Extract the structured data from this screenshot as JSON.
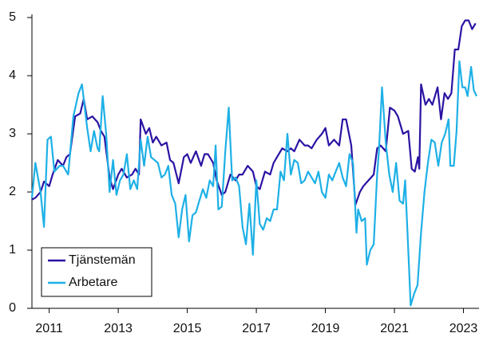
{
  "chart_data": {
    "type": "line",
    "xlim": [
      2010.5,
      2023.45
    ],
    "xticks": [
      2011,
      2013,
      2015,
      2017,
      2019,
      2021,
      2023
    ],
    "ylim": [
      0,
      5
    ],
    "yticks": [
      0,
      1,
      2,
      3,
      4,
      5
    ],
    "grid": false,
    "legend": "lower left",
    "series": [
      {
        "name": "Tjänstemän",
        "color": "#2b13a3",
        "x": [
          2010.5,
          2010.6,
          2010.75,
          2010.85,
          2011.0,
          2011.1,
          2011.25,
          2011.4,
          2011.5,
          2011.6,
          2011.75,
          2011.9,
          2012.0,
          2012.1,
          2012.25,
          2012.4,
          2012.5,
          2012.6,
          2012.75,
          2012.85,
          2013.0,
          2013.1,
          2013.25,
          2013.4,
          2013.5,
          2013.6,
          2013.65,
          2013.8,
          2013.9,
          2014.0,
          2014.1,
          2014.25,
          2014.4,
          2014.5,
          2014.6,
          2014.75,
          2014.9,
          2015.0,
          2015.1,
          2015.25,
          2015.4,
          2015.5,
          2015.6,
          2015.75,
          2015.85,
          2016.0,
          2016.1,
          2016.25,
          2016.4,
          2016.5,
          2016.6,
          2016.75,
          2016.9,
          2017.0,
          2017.1,
          2017.25,
          2017.4,
          2017.5,
          2017.6,
          2017.75,
          2017.9,
          2018.0,
          2018.1,
          2018.25,
          2018.4,
          2018.5,
          2018.6,
          2018.75,
          2018.9,
          2019.0,
          2019.1,
          2019.25,
          2019.4,
          2019.5,
          2019.6,
          2019.75,
          2019.87,
          2020.0,
          2020.1,
          2020.25,
          2020.4,
          2020.5,
          2020.6,
          2020.75,
          2020.87,
          2021.0,
          2021.1,
          2021.25,
          2021.4,
          2021.5,
          2021.59,
          2021.68,
          2021.72,
          2021.77,
          2021.9,
          2022.0,
          2022.1,
          2022.25,
          2022.35,
          2022.45,
          2022.55,
          2022.65,
          2022.75,
          2022.85,
          2022.95,
          2023.05,
          2023.15,
          2023.25,
          2023.35
        ],
        "values": [
          1.87,
          1.9,
          2.0,
          2.18,
          2.1,
          2.3,
          2.55,
          2.45,
          2.6,
          2.65,
          3.3,
          3.35,
          3.6,
          3.25,
          3.3,
          3.2,
          3.05,
          2.95,
          2.25,
          2.05,
          2.3,
          2.4,
          2.25,
          2.3,
          2.4,
          2.3,
          3.25,
          3.0,
          3.1,
          2.85,
          2.95,
          2.8,
          2.85,
          2.55,
          2.5,
          2.15,
          2.6,
          2.65,
          2.5,
          2.7,
          2.45,
          2.65,
          2.65,
          2.5,
          2.2,
          1.95,
          2.0,
          2.3,
          2.2,
          2.3,
          2.3,
          2.45,
          2.35,
          2.1,
          2.05,
          2.35,
          2.3,
          2.5,
          2.6,
          2.75,
          2.7,
          2.75,
          2.7,
          2.9,
          2.8,
          2.8,
          2.75,
          2.9,
          3.0,
          3.1,
          2.8,
          2.9,
          2.8,
          3.25,
          3.25,
          2.8,
          1.78,
          2.0,
          2.1,
          2.2,
          2.3,
          2.75,
          2.8,
          2.7,
          3.45,
          3.4,
          3.3,
          3.0,
          3.05,
          2.4,
          2.35,
          2.6,
          2.4,
          3.85,
          3.5,
          3.6,
          3.5,
          3.8,
          3.25,
          3.7,
          3.6,
          3.7,
          4.45,
          4.45,
          4.85,
          4.95,
          4.95,
          4.8,
          4.9
        ]
      },
      {
        "name": "Arbetare",
        "color": "#1eb0e6",
        "x": [
          2010.5,
          2010.6,
          2010.75,
          2010.85,
          2010.95,
          2011.05,
          2011.15,
          2011.3,
          2011.4,
          2011.55,
          2011.7,
          2011.85,
          2011.95,
          2012.1,
          2012.2,
          2012.3,
          2012.4,
          2012.45,
          2012.55,
          2012.65,
          2012.75,
          2012.85,
          2012.95,
          2013.05,
          2013.15,
          2013.25,
          2013.35,
          2013.45,
          2013.55,
          2013.65,
          2013.75,
          2013.85,
          2013.95,
          2014.05,
          2014.15,
          2014.25,
          2014.35,
          2014.45,
          2014.55,
          2014.65,
          2014.75,
          2014.85,
          2014.95,
          2015.05,
          2015.15,
          2015.25,
          2015.35,
          2015.45,
          2015.55,
          2015.65,
          2015.75,
          2015.82,
          2015.9,
          2016.0,
          2016.1,
          2016.2,
          2016.3,
          2016.4,
          2016.5,
          2016.6,
          2016.7,
          2016.8,
          2016.9,
          2017.0,
          2017.1,
          2017.2,
          2017.3,
          2017.4,
          2017.5,
          2017.6,
          2017.7,
          2017.8,
          2017.9,
          2018.0,
          2018.1,
          2018.2,
          2018.3,
          2018.4,
          2018.5,
          2018.6,
          2018.7,
          2018.8,
          2018.9,
          2019.0,
          2019.1,
          2019.2,
          2019.3,
          2019.4,
          2019.5,
          2019.6,
          2019.7,
          2019.8,
          2019.9,
          2019.95,
          2020.05,
          2020.15,
          2020.2,
          2020.3,
          2020.4,
          2020.5,
          2020.55,
          2020.64,
          2020.75,
          2020.85,
          2020.95,
          2021.05,
          2021.15,
          2021.25,
          2021.31,
          2021.4,
          2021.47,
          2021.57,
          2021.67,
          2021.77,
          2021.87,
          2021.97,
          2022.07,
          2022.17,
          2022.27,
          2022.37,
          2022.47,
          2022.57,
          2022.62,
          2022.72,
          2022.8,
          2022.88,
          2022.97,
          2023.05,
          2023.12,
          2023.22,
          2023.3,
          2023.38
        ],
        "values": [
          1.9,
          2.5,
          2.0,
          1.4,
          2.9,
          2.95,
          2.35,
          2.45,
          2.45,
          2.3,
          3.3,
          3.7,
          3.85,
          3.1,
          2.7,
          3.05,
          2.75,
          2.7,
          3.65,
          3.0,
          2.0,
          2.55,
          1.95,
          2.2,
          2.3,
          2.65,
          2.05,
          2.2,
          2.05,
          2.9,
          2.45,
          2.95,
          2.6,
          2.55,
          2.5,
          2.25,
          2.3,
          2.45,
          1.95,
          1.8,
          1.22,
          1.7,
          1.95,
          1.15,
          1.6,
          1.65,
          1.85,
          2.05,
          1.9,
          2.2,
          2.1,
          2.8,
          1.7,
          1.75,
          2.7,
          3.45,
          2.2,
          2.25,
          2.1,
          1.4,
          1.1,
          1.8,
          0.92,
          2.2,
          1.45,
          1.35,
          1.55,
          1.5,
          1.7,
          1.7,
          2.35,
          2.2,
          3.0,
          2.3,
          2.55,
          2.5,
          2.15,
          2.2,
          2.35,
          2.25,
          2.15,
          2.35,
          2.0,
          1.9,
          2.3,
          2.2,
          2.35,
          2.5,
          2.25,
          2.1,
          2.65,
          2.5,
          1.3,
          1.7,
          1.5,
          1.55,
          0.75,
          1.0,
          1.1,
          2.3,
          2.7,
          3.8,
          2.85,
          2.3,
          2.0,
          2.5,
          1.85,
          1.8,
          2.2,
          1.0,
          0.05,
          0.25,
          0.4,
          1.3,
          2.0,
          2.5,
          2.9,
          2.85,
          2.45,
          2.85,
          3.0,
          3.25,
          2.45,
          2.45,
          3.05,
          4.25,
          3.8,
          3.8,
          3.65,
          4.15,
          3.75,
          3.65
        ]
      }
    ]
  }
}
